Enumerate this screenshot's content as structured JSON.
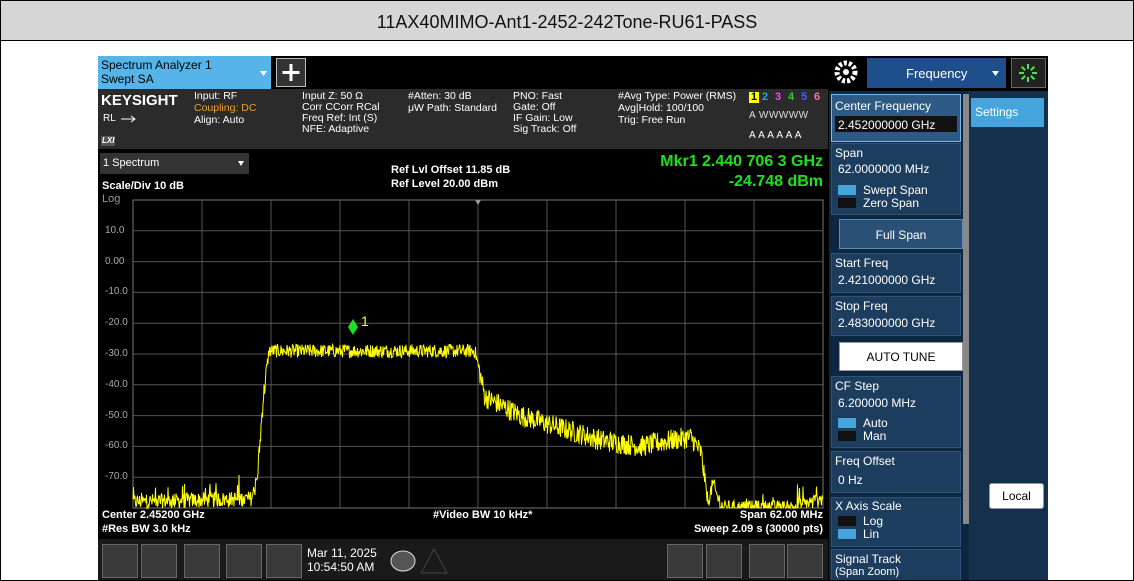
{
  "header": {
    "title": "11AX40MIMO-Ant1-2452-242Tone-RU61-PASS"
  },
  "tab": {
    "line1": "Spectrum Analyzer 1",
    "line2": "Swept SA"
  },
  "menu": {
    "frequency": "Frequency"
  },
  "status": {
    "brand": "KEYSIGHT",
    "rl": "RL",
    "lxi": "LXI",
    "col1": [
      "Input: RF",
      "Coupling: DC",
      "Align: Auto"
    ],
    "col2": [
      "Input Z: 50 Ω",
      "Corr CCorr RCal",
      "Freq Ref: Int (S)",
      "NFE: Adaptive"
    ],
    "col3": [
      "#Atten: 30 dB",
      "μW Path: Standard"
    ],
    "col4": [
      "PNO: Fast",
      "Gate: Off",
      "IF Gain: Low",
      "Sig Track: Off"
    ],
    "col5": [
      "#Avg Type: Power (RMS)",
      "Avg|Hold: 100/100",
      "Trig: Free Run"
    ],
    "traces": [
      "1",
      "2",
      "3",
      "4",
      "5",
      "6"
    ],
    "trace_types": "A WWWWW",
    "trace_detectors": "A A A A A A"
  },
  "graph": {
    "window": "1 Spectrum",
    "scale": "Scale/Div 10 dB",
    "scale_type": "Log",
    "ref_offset": "Ref Lvl Offset 11.85 dB",
    "ref_level": "Ref Level 20.00 dBm",
    "marker_freq": "Mkr1  2.440 706 3 GHz",
    "marker_level": "-24.748 dBm",
    "marker_label": "1",
    "y_labels": [
      "10.0",
      "0.00",
      "-10.0",
      "-20.0",
      "-30.0",
      "-40.0",
      "-50.0",
      "-60.0",
      "-70.0"
    ],
    "center": "Center 2.45200 GHz",
    "res_bw": "#Res BW 3.0 kHz",
    "video_bw": "#Video BW 10 kHz*",
    "span": "Span 62.00 MHz",
    "sweep": "Sweep 2.09 s (30000 pts)"
  },
  "panel": {
    "center_freq": "Center Frequency",
    "center_freq_value": "2.452000000 GHz",
    "span": "Span",
    "span_value": "62.0000000 MHz",
    "swept_span": "Swept Span",
    "zero_span": "Zero Span",
    "full_span": "Full Span",
    "start_freq": "Start Freq",
    "start_freq_value": "2.421000000 GHz",
    "stop_freq": "Stop Freq",
    "stop_freq_value": "2.483000000 GHz",
    "auto_tune": "AUTO TUNE",
    "cf_step": "CF Step",
    "cf_step_value": "6.200000 MHz",
    "auto": "Auto",
    "man": "Man",
    "freq_offset": "Freq Offset",
    "freq_offset_value": "0 Hz",
    "x_axis_scale": "X Axis Scale",
    "log": "Log",
    "lin": "Lin",
    "signal_track": "Signal Track",
    "span_zoom": "(Span Zoom)"
  },
  "side": {
    "settings": "Settings",
    "local": "Local"
  },
  "taskbar": {
    "date": "Mar 11, 2025",
    "time": "10:54:50 AM"
  }
}
